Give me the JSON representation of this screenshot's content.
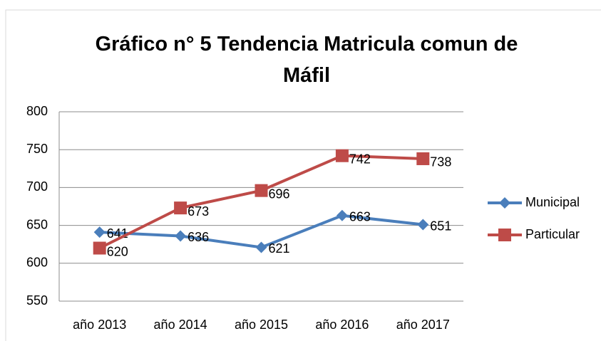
{
  "chart_data": {
    "type": "line",
    "title": "Gráfico n° 5 Tendencia Matricula comun de Máfil",
    "categories": [
      "año 2013",
      "año 2014",
      "año 2015",
      "año 2016",
      "año 2017"
    ],
    "series": [
      {
        "name": "Municipal",
        "color": "#4a7ebb",
        "marker": "diamond",
        "values": [
          641,
          636,
          621,
          663,
          651
        ]
      },
      {
        "name": "Particular",
        "color": "#be4b48",
        "marker": "square",
        "values": [
          620,
          673,
          696,
          742,
          738
        ]
      }
    ],
    "ylim": [
      550,
      800
    ],
    "yticks": [
      550,
      600,
      650,
      700,
      750,
      800
    ],
    "grid": true,
    "legend": "right"
  }
}
